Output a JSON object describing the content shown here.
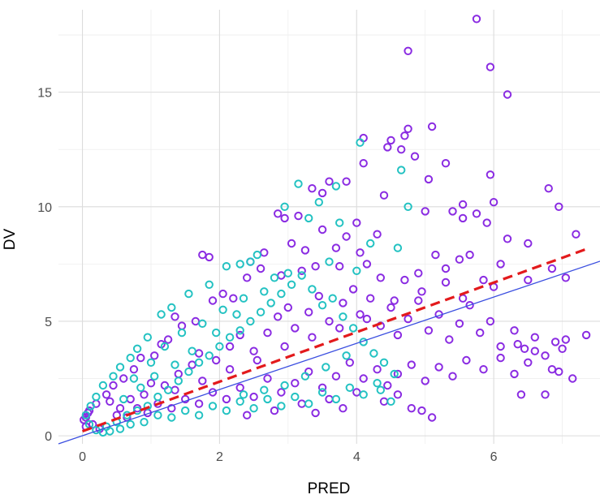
{
  "chart_data": {
    "type": "scatter",
    "title": "",
    "xlabel": "PRED",
    "ylabel": "DV",
    "xlim": [
      -0.35,
      7.55
    ],
    "ylim": [
      -0.35,
      18.6
    ],
    "xticks": [
      0,
      2,
      4,
      6
    ],
    "yticks": [
      0,
      5,
      10,
      15
    ],
    "grid": true,
    "legend": "none",
    "colors": {
      "series_a": "#8a2be2",
      "series_b": "#23c2c2",
      "identity_line": "#3b4fe0",
      "trend_line": "#e31a1c",
      "grid_major": "#dcdcdc",
      "grid_minor": "#eeeeee"
    },
    "series": [
      {
        "color": "#8a2be2",
        "points": [
          [
            5.75,
            18.2
          ],
          [
            4.75,
            16.8
          ],
          [
            5.95,
            16.1
          ],
          [
            6.2,
            14.9
          ],
          [
            5.1,
            13.5
          ],
          [
            4.1,
            13.0
          ],
          [
            4.45,
            12.6
          ],
          [
            4.75,
            13.4
          ],
          [
            4.7,
            13.1
          ],
          [
            4.5,
            12.9
          ],
          [
            5.3,
            11.9
          ],
          [
            4.65,
            12.5
          ],
          [
            4.85,
            12.2
          ],
          [
            5.95,
            11.4
          ],
          [
            5.05,
            11.2
          ],
          [
            4.1,
            11.9
          ],
          [
            3.85,
            11.1
          ],
          [
            3.6,
            11.1
          ],
          [
            3.35,
            10.8
          ],
          [
            3.5,
            10.6
          ],
          [
            2.85,
            9.7
          ],
          [
            2.95,
            9.5
          ],
          [
            3.15,
            9.6
          ],
          [
            4.4,
            10.5
          ],
          [
            5.55,
            10.1
          ],
          [
            5.75,
            9.7
          ],
          [
            5.0,
            9.8
          ],
          [
            5.4,
            9.8
          ],
          [
            6.0,
            10.2
          ],
          [
            5.9,
            9.3
          ],
          [
            6.2,
            8.6
          ],
          [
            6.5,
            8.4
          ],
          [
            6.8,
            10.8
          ],
          [
            6.95,
            10.0
          ],
          [
            7.2,
            8.8
          ],
          [
            5.55,
            9.5
          ],
          [
            4.0,
            9.3
          ],
          [
            3.5,
            9.0
          ],
          [
            3.85,
            8.7
          ],
          [
            4.3,
            8.8
          ],
          [
            5.15,
            7.9
          ],
          [
            5.5,
            7.7
          ],
          [
            6.1,
            7.5
          ],
          [
            6.5,
            6.8
          ],
          [
            6.85,
            7.3
          ],
          [
            7.05,
            6.9
          ],
          [
            6.0,
            6.5
          ],
          [
            5.85,
            6.8
          ],
          [
            5.55,
            6.0
          ],
          [
            5.3,
            6.7
          ],
          [
            4.9,
            7.1
          ],
          [
            4.7,
            6.8
          ],
          [
            4.35,
            6.9
          ],
          [
            4.15,
            7.5
          ],
          [
            3.75,
            7.4
          ],
          [
            3.4,
            7.4
          ],
          [
            3.2,
            7.2
          ],
          [
            2.9,
            7.0
          ],
          [
            2.6,
            7.3
          ],
          [
            2.4,
            6.9
          ],
          [
            2.2,
            6.0
          ],
          [
            1.75,
            7.9
          ],
          [
            1.85,
            7.8
          ],
          [
            1.9,
            5.9
          ],
          [
            2.05,
            6.2
          ],
          [
            1.65,
            5.0
          ],
          [
            1.35,
            5.2
          ],
          [
            1.45,
            4.8
          ],
          [
            1.25,
            4.2
          ],
          [
            1.15,
            4.0
          ],
          [
            1.05,
            3.5
          ],
          [
            0.85,
            3.4
          ],
          [
            0.75,
            2.9
          ],
          [
            0.6,
            2.5
          ],
          [
            0.45,
            2.2
          ],
          [
            0.35,
            1.8
          ],
          [
            0.2,
            1.4
          ],
          [
            0.1,
            1.1
          ],
          [
            0.05,
            0.8
          ],
          [
            0.15,
            0.5
          ],
          [
            0.25,
            0.3
          ],
          [
            0.05,
            0.4
          ],
          [
            0.02,
            0.7
          ],
          [
            0.08,
            1.0
          ],
          [
            0.4,
            1.5
          ],
          [
            0.55,
            1.2
          ],
          [
            0.7,
            1.6
          ],
          [
            0.9,
            1.8
          ],
          [
            1.0,
            2.3
          ],
          [
            1.2,
            2.2
          ],
          [
            1.4,
            2.7
          ],
          [
            1.6,
            3.1
          ],
          [
            1.7,
            3.6
          ],
          [
            1.95,
            3.3
          ],
          [
            2.15,
            3.9
          ],
          [
            2.3,
            4.4
          ],
          [
            2.5,
            3.7
          ],
          [
            2.7,
            4.5
          ],
          [
            2.85,
            5.2
          ],
          [
            3.0,
            5.6
          ],
          [
            3.1,
            4.7
          ],
          [
            3.3,
            5.4
          ],
          [
            3.45,
            6.1
          ],
          [
            3.6,
            5.0
          ],
          [
            3.8,
            5.8
          ],
          [
            3.95,
            6.4
          ],
          [
            4.05,
            5.3
          ],
          [
            4.2,
            6.0
          ],
          [
            4.35,
            4.8
          ],
          [
            4.5,
            5.6
          ],
          [
            4.6,
            4.4
          ],
          [
            4.75,
            5.1
          ],
          [
            4.9,
            5.9
          ],
          [
            5.05,
            4.6
          ],
          [
            5.2,
            5.3
          ],
          [
            5.35,
            4.2
          ],
          [
            5.5,
            4.9
          ],
          [
            5.65,
            5.7
          ],
          [
            5.8,
            4.5
          ],
          [
            5.95,
            5.0
          ],
          [
            6.1,
            3.9
          ],
          [
            6.3,
            4.6
          ],
          [
            6.45,
            3.8
          ],
          [
            6.6,
            4.3
          ],
          [
            6.75,
            3.5
          ],
          [
            6.9,
            4.1
          ],
          [
            7.05,
            4.2
          ],
          [
            7.35,
            4.4
          ],
          [
            6.95,
            2.8
          ],
          [
            7.15,
            2.5
          ],
          [
            6.5,
            3.2
          ],
          [
            6.3,
            2.7
          ],
          [
            6.1,
            3.4
          ],
          [
            5.85,
            2.9
          ],
          [
            5.6,
            3.3
          ],
          [
            5.4,
            2.6
          ],
          [
            5.2,
            3.0
          ],
          [
            5.0,
            2.4
          ],
          [
            4.8,
            3.1
          ],
          [
            4.6,
            2.7
          ],
          [
            4.45,
            2.2
          ],
          [
            4.3,
            2.9
          ],
          [
            4.1,
            2.5
          ],
          [
            3.9,
            3.2
          ],
          [
            3.7,
            2.6
          ],
          [
            3.5,
            2.1
          ],
          [
            3.3,
            2.8
          ],
          [
            3.1,
            2.3
          ],
          [
            2.9,
            1.9
          ],
          [
            2.7,
            2.5
          ],
          [
            2.5,
            1.7
          ],
          [
            2.3,
            2.1
          ],
          [
            2.1,
            1.6
          ],
          [
            1.9,
            1.9
          ],
          [
            1.7,
            1.4
          ],
          [
            1.5,
            1.6
          ],
          [
            1.3,
            1.2
          ],
          [
            1.1,
            1.4
          ],
          [
            0.95,
            1.0
          ],
          [
            0.8,
            1.2
          ],
          [
            0.65,
            0.8
          ],
          [
            0.5,
            0.9
          ],
          [
            3.2,
            1.4
          ],
          [
            3.6,
            1.6
          ],
          [
            4.0,
            1.9
          ],
          [
            4.4,
            1.5
          ],
          [
            4.8,
            1.2
          ],
          [
            5.1,
            0.8
          ],
          [
            4.95,
            1.1
          ],
          [
            4.6,
            1.8
          ],
          [
            3.8,
            1.2
          ],
          [
            3.4,
            1.0
          ],
          [
            2.8,
            1.1
          ],
          [
            2.4,
            0.9
          ],
          [
            6.75,
            1.8
          ],
          [
            6.4,
            1.8
          ],
          [
            6.6,
            3.7
          ],
          [
            6.35,
            4.0
          ],
          [
            7.0,
            3.8
          ],
          [
            6.85,
            2.9
          ],
          [
            5.65,
            7.9
          ],
          [
            5.3,
            7.3
          ],
          [
            4.95,
            6.3
          ],
          [
            4.55,
            5.9
          ],
          [
            4.15,
            5.1
          ],
          [
            3.75,
            4.7
          ],
          [
            3.35,
            4.3
          ],
          [
            2.95,
            3.9
          ],
          [
            2.55,
            3.3
          ],
          [
            2.15,
            2.9
          ],
          [
            1.75,
            2.4
          ],
          [
            1.35,
            2.0
          ],
          [
            3.05,
            8.4
          ],
          [
            3.25,
            8.1
          ],
          [
            2.65,
            8.0
          ],
          [
            2.45,
            7.6
          ],
          [
            3.7,
            8.2
          ],
          [
            4.05,
            8.0
          ]
        ]
      },
      {
        "color": "#23c2c2",
        "points": [
          [
            4.05,
            12.8
          ],
          [
            3.15,
            11.0
          ],
          [
            3.45,
            10.2
          ],
          [
            3.7,
            10.9
          ],
          [
            4.65,
            11.6
          ],
          [
            4.75,
            10.0
          ],
          [
            2.95,
            10.0
          ],
          [
            3.3,
            9.5
          ],
          [
            2.45,
            7.6
          ],
          [
            2.3,
            7.5
          ],
          [
            3.75,
            9.3
          ],
          [
            4.2,
            8.4
          ],
          [
            4.6,
            8.2
          ],
          [
            2.55,
            7.9
          ],
          [
            2.1,
            7.4
          ],
          [
            1.85,
            6.6
          ],
          [
            1.55,
            6.2
          ],
          [
            1.3,
            5.6
          ],
          [
            1.15,
            5.3
          ],
          [
            0.95,
            4.3
          ],
          [
            0.8,
            3.8
          ],
          [
            0.7,
            3.4
          ],
          [
            0.55,
            3.0
          ],
          [
            0.45,
            2.6
          ],
          [
            0.3,
            2.2
          ],
          [
            0.2,
            1.7
          ],
          [
            0.12,
            1.3
          ],
          [
            0.05,
            0.9
          ],
          [
            0.1,
            0.5
          ],
          [
            0.2,
            0.25
          ],
          [
            0.35,
            0.4
          ],
          [
            0.5,
            0.6
          ],
          [
            0.65,
            0.9
          ],
          [
            0.8,
            1.1
          ],
          [
            0.95,
            1.3
          ],
          [
            1.1,
            1.7
          ],
          [
            1.25,
            2.0
          ],
          [
            1.4,
            2.4
          ],
          [
            1.55,
            2.8
          ],
          [
            1.7,
            3.2
          ],
          [
            1.85,
            3.5
          ],
          [
            2.0,
            3.9
          ],
          [
            2.15,
            4.3
          ],
          [
            2.3,
            4.6
          ],
          [
            2.45,
            5.0
          ],
          [
            2.6,
            5.4
          ],
          [
            2.75,
            5.8
          ],
          [
            2.9,
            6.2
          ],
          [
            3.05,
            6.6
          ],
          [
            3.2,
            7.0
          ],
          [
            3.35,
            6.4
          ],
          [
            3.5,
            5.7
          ],
          [
            3.65,
            6.0
          ],
          [
            3.8,
            5.2
          ],
          [
            3.95,
            4.7
          ],
          [
            4.1,
            4.1
          ],
          [
            4.25,
            3.6
          ],
          [
            4.4,
            3.2
          ],
          [
            4.55,
            2.7
          ],
          [
            4.3,
            2.3
          ],
          [
            4.1,
            1.8
          ],
          [
            3.9,
            2.1
          ],
          [
            3.7,
            1.6
          ],
          [
            3.5,
            1.9
          ],
          [
            3.3,
            1.4
          ],
          [
            3.1,
            1.7
          ],
          [
            2.9,
            1.3
          ],
          [
            2.7,
            1.6
          ],
          [
            2.5,
            1.2
          ],
          [
            2.3,
            1.5
          ],
          [
            2.1,
            1.1
          ],
          [
            1.9,
            1.3
          ],
          [
            1.7,
            0.9
          ],
          [
            1.5,
            1.1
          ],
          [
            1.3,
            0.8
          ],
          [
            1.1,
            0.9
          ],
          [
            0.9,
            0.6
          ],
          [
            0.7,
            0.5
          ],
          [
            0.55,
            0.3
          ],
          [
            0.4,
            0.2
          ],
          [
            0.3,
            0.15
          ],
          [
            0.6,
            1.6
          ],
          [
            0.85,
            2.1
          ],
          [
            1.05,
            2.6
          ],
          [
            1.35,
            3.1
          ],
          [
            1.6,
            3.7
          ],
          [
            1.95,
            4.5
          ],
          [
            2.25,
            5.3
          ],
          [
            2.65,
            6.3
          ],
          [
            3.0,
            7.1
          ],
          [
            1.45,
            4.5
          ],
          [
            1.2,
            3.9
          ],
          [
            1.0,
            3.2
          ],
          [
            0.75,
            2.5
          ],
          [
            4.35,
            2.0
          ],
          [
            4.5,
            1.5
          ],
          [
            4.0,
            7.2
          ],
          [
            3.6,
            7.6
          ],
          [
            2.8,
            6.9
          ],
          [
            2.35,
            6.0
          ],
          [
            2.05,
            5.5
          ],
          [
            1.75,
            4.9
          ],
          [
            3.85,
            3.5
          ],
          [
            3.55,
            3.0
          ],
          [
            3.25,
            2.6
          ],
          [
            2.95,
            2.2
          ],
          [
            2.65,
            2.0
          ],
          [
            2.35,
            1.8
          ]
        ]
      }
    ],
    "lines": [
      {
        "style": "solid",
        "color": "#3b4fe0",
        "from": [
          -0.35,
          -0.35
        ],
        "to": [
          7.55,
          7.62
        ]
      },
      {
        "style": "dashed",
        "color": "#e31a1c",
        "from": [
          0.0,
          0.2
        ],
        "to": [
          7.35,
          8.15
        ]
      }
    ]
  }
}
